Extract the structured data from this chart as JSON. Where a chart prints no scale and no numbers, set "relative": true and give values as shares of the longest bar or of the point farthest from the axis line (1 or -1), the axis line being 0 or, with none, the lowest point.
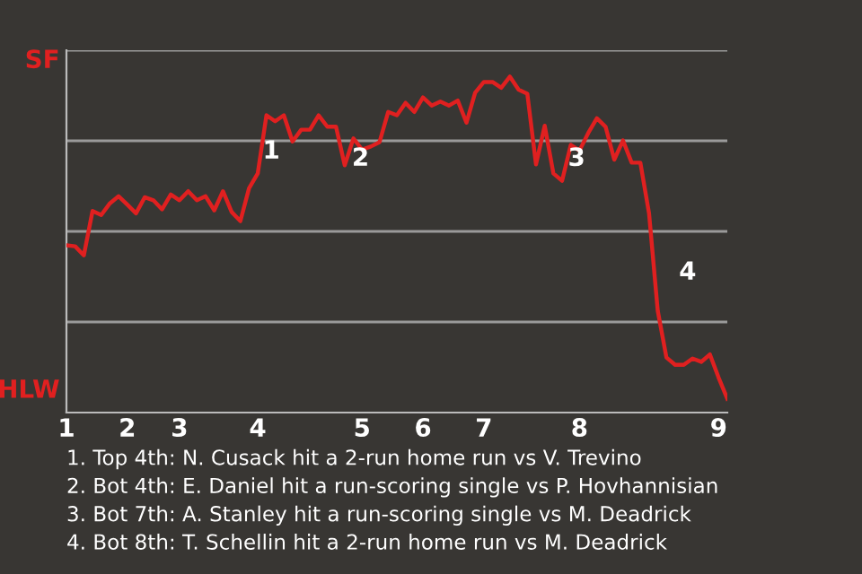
{
  "chart_data": {
    "type": "line",
    "relative": true,
    "categories": [
      "1",
      null,
      null,
      null,
      null,
      null,
      null,
      "2",
      null,
      null,
      null,
      null,
      null,
      "3",
      null,
      null,
      null,
      null,
      null,
      null,
      null,
      null,
      "4",
      null,
      null,
      null,
      null,
      null,
      null,
      null,
      null,
      null,
      null,
      null,
      "5",
      null,
      null,
      null,
      null,
      null,
      null,
      "6",
      null,
      null,
      null,
      null,
      null,
      null,
      "7",
      null,
      null,
      null,
      null,
      null,
      null,
      null,
      null,
      null,
      null,
      "8",
      null,
      null,
      null,
      null,
      null,
      null,
      null,
      null,
      null,
      null,
      null,
      null,
      null,
      null,
      null,
      "9",
      null
    ],
    "series": [
      {
        "color": "#e02020",
        "values": [
          0.498,
          0.495,
          0.468,
          0.6,
          0.588,
          0.623,
          0.644,
          0.619,
          0.593,
          0.641,
          0.632,
          0.605,
          0.649,
          0.632,
          0.659,
          0.632,
          0.644,
          0.602,
          0.659,
          0.597,
          0.57,
          0.668,
          0.712,
          0.885,
          0.867,
          0.885,
          0.807,
          0.842,
          0.842,
          0.885,
          0.851,
          0.851,
          0.736,
          0.816,
          0.783,
          0.792,
          0.805,
          0.895,
          0.885,
          0.922,
          0.895,
          0.938,
          0.914,
          0.926,
          0.914,
          0.929,
          0.863,
          0.952,
          0.984,
          0.984,
          0.967,
          1,
          0.961,
          0.949,
          0.739,
          0.854,
          0.712,
          0.69,
          0.797,
          0.78,
          0.832,
          0.876,
          0.851,
          0.753,
          0.81,
          0.744,
          0.744,
          0.593,
          0.303,
          0.164,
          0.142,
          0.142,
          0.161,
          0.151,
          0.173,
          0.104,
          0.041
        ]
      }
    ],
    "grid": "y",
    "marker": "none",
    "line_style": "solid",
    "annotations": [
      "SF",
      "HLW",
      "1",
      "2",
      "3",
      "4",
      "1. Top 4th: N. Cusack hit a 2-run home run vs V. Trevino",
      "2. Bot 4th: E. Daniel hit a run-scoring single vs P. Hovhannisian",
      "3. Bot 7th: A. Stanley hit a run-scoring single vs M. Deadrick",
      "4. Bot 8th: T. Schellin hit a 2-run home run vs M. Deadrick"
    ]
  }
}
